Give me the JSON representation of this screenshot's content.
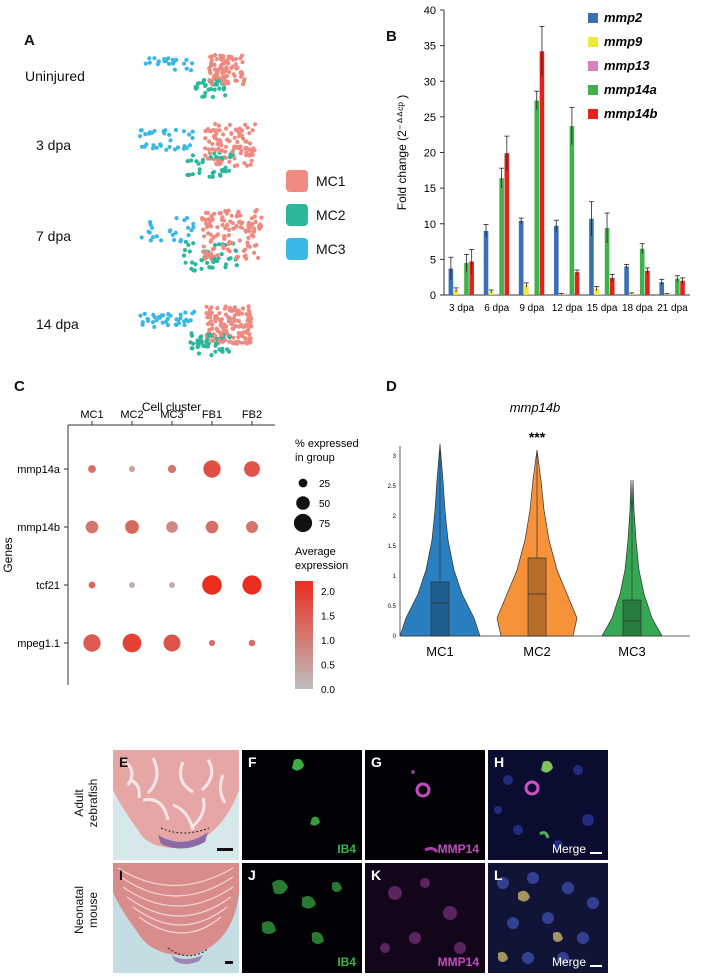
{
  "panels": {
    "A": "A",
    "B": "B",
    "C": "C",
    "D": "D",
    "E": "E",
    "F": "F",
    "G": "G",
    "H": "H",
    "I": "I",
    "J": "J",
    "K": "K",
    "L": "L"
  },
  "panel_a": {
    "conditions": [
      "Uninjured",
      "3 dpa",
      "7 dpa",
      "14 dpa"
    ],
    "legend": [
      {
        "label": "MC1",
        "color": "#ef8a80"
      },
      {
        "label": "MC2",
        "color": "#2bb79a"
      },
      {
        "label": "MC3",
        "color": "#39b8e8"
      }
    ]
  },
  "chart_data": [
    {
      "type": "bar",
      "panel": "B",
      "ylabel": "Fold change (2⁻ᐞᐞᶜᵖ )",
      "ylim": [
        0,
        40
      ],
      "yticks": [
        0,
        5,
        10,
        15,
        20,
        25,
        30,
        35,
        40
      ],
      "categories": [
        "3 dpa",
        "6 dpa",
        "9 dpa",
        "12 dpa",
        "15 dpa",
        "18 dpa",
        "21 dpa"
      ],
      "series": [
        {
          "name": "mmp2",
          "color": "#3b6fb6",
          "values": [
            3.7,
            9.0,
            10.4,
            9.7,
            10.7,
            4.0,
            1.8
          ],
          "err": [
            1.6,
            0.9,
            0.4,
            0.8,
            2.4,
            0.3,
            0.4
          ]
        },
        {
          "name": "mmp9",
          "color": "#f1e83b",
          "values": [
            0.7,
            0.5,
            1.4,
            0.1,
            0.9,
            0.2,
            0.1
          ],
          "err": [
            0.3,
            0.2,
            0.3,
            0.1,
            0.3,
            0.1,
            0.1
          ]
        },
        {
          "name": "mmp13",
          "color": "#d980c4",
          "values": [
            0.1,
            0.1,
            0.1,
            0.1,
            0.1,
            0.1,
            0.1
          ],
          "err": [
            0,
            0,
            0,
            0,
            0,
            0,
            0
          ]
        },
        {
          "name": "mmp14a",
          "color": "#3fb34b",
          "values": [
            4.5,
            16.4,
            27.3,
            23.7,
            9.4,
            6.5,
            2.3
          ],
          "err": [
            1.2,
            1.4,
            1.3,
            2.6,
            2.1,
            0.7,
            0.4
          ]
        },
        {
          "name": "mmp14b",
          "color": "#e2231a",
          "values": [
            4.7,
            19.9,
            34.2,
            3.2,
            2.4,
            3.4,
            2.0
          ],
          "err": [
            1.7,
            2.4,
            3.5,
            0.3,
            0.5,
            0.4,
            0.4
          ]
        }
      ]
    },
    {
      "type": "scatter",
      "panel": "C",
      "title": "Cell cluster",
      "ylabel": "Genes",
      "clusters": [
        "MC1",
        "MC2",
        "MC3",
        "FB1",
        "FB2"
      ],
      "genes": [
        "mmp14a",
        "mmp14b",
        "tcf21",
        "mpeg1.1"
      ],
      "size_legend_title": "% expressed in group",
      "size_legend": [
        25,
        50,
        75
      ],
      "color_legend_title": "Average expression",
      "color_ticks": [
        "2.0",
        "1.5",
        "1.0",
        "0.5",
        "0.0"
      ],
      "pct_expressed": [
        [
          20,
          12,
          22,
          70,
          62
        ],
        [
          45,
          52,
          40,
          45,
          42
        ],
        [
          15,
          10,
          10,
          82,
          80
        ],
        [
          70,
          78,
          68,
          12,
          14
        ]
      ],
      "avg_expression": [
        [
          1.2,
          0.4,
          1.1,
          1.7,
          1.6
        ],
        [
          1.1,
          1.3,
          0.8,
          1.2,
          1.1
        ],
        [
          1.3,
          0.2,
          0.2,
          2.2,
          2.2
        ],
        [
          1.5,
          1.9,
          1.6,
          1.2,
          1.2
        ]
      ]
    },
    {
      "type": "violin",
      "panel": "D",
      "title": "mmp14b",
      "annotation": "***",
      "categories": [
        "MC1",
        "MC2",
        "MC3"
      ],
      "colors": [
        "#2a7fc1",
        "#f7923a",
        "#35a853"
      ],
      "ylim": [
        0,
        3
      ],
      "yticks": [
        "3",
        "2.5",
        "2",
        "1.5",
        "1",
        "0.5",
        "0"
      ],
      "box": [
        {
          "q1": 0,
          "median": 0.55,
          "q3": 0.9,
          "max": 3.2
        },
        {
          "q1": 0,
          "median": 0.7,
          "q3": 1.3,
          "max": 3.1
        },
        {
          "q1": 0,
          "median": 0.25,
          "q3": 0.6,
          "max": 2.0
        }
      ]
    }
  ],
  "micrographs": {
    "row_labels": [
      "Adult zebrafish",
      "Neonatal mouse"
    ],
    "stain_labels": {
      "ib4": "IB4",
      "mmp14": "MMP14",
      "merge": "Merge"
    }
  }
}
